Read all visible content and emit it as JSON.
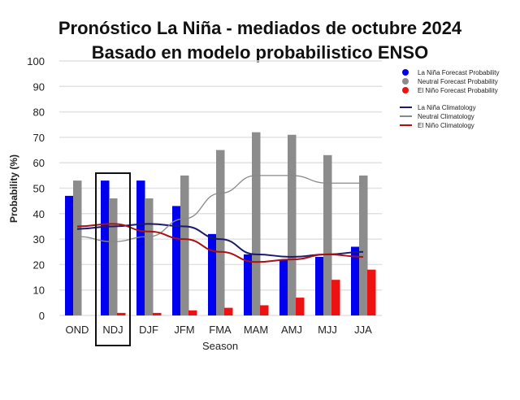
{
  "chart_data": {
    "type": "bar",
    "title": "Pronóstico La Niña - mediados de octubre 2024",
    "subtitle": "Basado en modelo probabilistico ENSO",
    "xlabel": "Season",
    "ylabel": "Probability (%)",
    "ylim": [
      0,
      100
    ],
    "yticks": [
      0,
      10,
      20,
      30,
      40,
      50,
      60,
      70,
      80,
      90,
      100
    ],
    "categories": [
      "OND",
      "NDJ",
      "DJF",
      "JFM",
      "FMA",
      "MAM",
      "AMJ",
      "MJJ",
      "JJA"
    ],
    "highlighted_category": "NDJ",
    "series": [
      {
        "name": "La Niña Forecast Probability",
        "kind": "bar",
        "color": "#0000ee",
        "values": [
          47,
          53,
          53,
          43,
          32,
          24,
          22,
          23,
          27
        ]
      },
      {
        "name": "Neutral Forecast Probability",
        "kind": "bar",
        "color": "#8c8c8c",
        "values": [
          53,
          46,
          46,
          55,
          65,
          72,
          71,
          63,
          55
        ]
      },
      {
        "name": "El Niño Forecast Probability",
        "kind": "bar",
        "color": "#ee1111",
        "values": [
          0,
          1,
          1,
          2,
          3,
          4,
          7,
          14,
          18
        ]
      },
      {
        "name": "La Niña Climatology",
        "kind": "line",
        "color": "#1a1a6e",
        "values": [
          34,
          35,
          36,
          35,
          30,
          24,
          23,
          24,
          25
        ]
      },
      {
        "name": "Neutral Climatology",
        "kind": "line",
        "color": "#888888",
        "values": [
          31,
          29,
          31,
          38,
          48,
          55,
          55,
          52,
          52
        ]
      },
      {
        "name": "El Niño Climatology",
        "kind": "line",
        "color": "#aa1111",
        "values": [
          35,
          36,
          33,
          30,
          25,
          21,
          22,
          24,
          23
        ]
      }
    ],
    "legend_position": "right"
  }
}
